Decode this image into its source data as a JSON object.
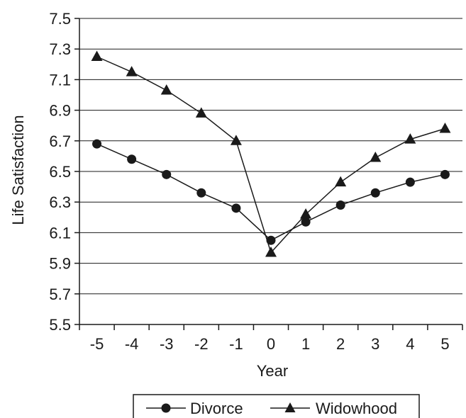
{
  "chart_data": {
    "type": "line",
    "title": "",
    "xlabel": "Year",
    "ylabel": "Life Satisfaction",
    "x": [
      -5,
      -4,
      -3,
      -2,
      -1,
      0,
      1,
      2,
      3,
      4,
      5
    ],
    "x_tick_labels": [
      "-5",
      "-4",
      "-3",
      "-2",
      "-1",
      "0",
      "1",
      "2",
      "3",
      "4",
      "5"
    ],
    "y_ticks": [
      5.5,
      5.7,
      5.9,
      6.1,
      6.3,
      6.5,
      6.7,
      6.9,
      7.1,
      7.3,
      7.5
    ],
    "y_tick_labels": [
      "5.5",
      "5.7",
      "5.9",
      "6.1",
      "6.3",
      "6.5",
      "6.7",
      "6.9",
      "7.1",
      "7.3",
      "7.5"
    ],
    "ylim": [
      5.5,
      7.5
    ],
    "grid": "horizontal",
    "legend_position": "bottom",
    "series": [
      {
        "name": "Divorce",
        "marker": "circle",
        "color": "#1a1a1a",
        "values": [
          6.68,
          6.58,
          6.48,
          6.36,
          6.26,
          6.05,
          6.17,
          6.28,
          6.36,
          6.43,
          6.48
        ]
      },
      {
        "name": "Widowhood",
        "marker": "triangle",
        "color": "#1a1a1a",
        "values": [
          7.25,
          7.15,
          7.03,
          6.88,
          6.7,
          5.97,
          6.22,
          6.43,
          6.59,
          6.71,
          6.78
        ]
      }
    ]
  }
}
